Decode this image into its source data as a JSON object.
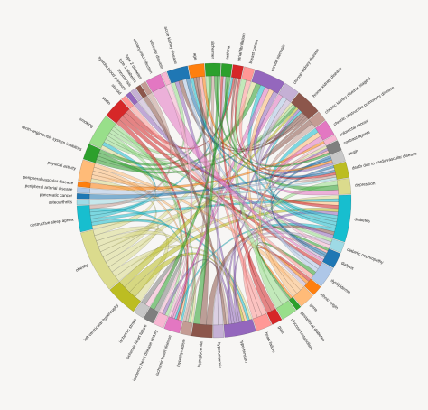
{
  "diagram": {
    "type": "chord",
    "nodes": [
      {
        "label": "acute kidney disease",
        "color": "#1f77b4"
      },
      {
        "label": "age",
        "color": "#ff7f0e"
      },
      {
        "label": "alzheimer",
        "color": "#2ca02c"
      },
      {
        "label": "asthma",
        "color": "#2ca02c"
      },
      {
        "label": "atrial fibrillation",
        "color": "#d62728"
      },
      {
        "label": "breast cancer",
        "color": "#ff9896"
      },
      {
        "label": "carotid stenosis",
        "color": "#9467bd"
      },
      {
        "label": "chronic kidney disease",
        "color": "#c5b0d5"
      },
      {
        "label": "chronic kidney disease",
        "color": "#8c564b"
      },
      {
        "label": "chronic kidney disease stage 5",
        "color": "#c49c94"
      },
      {
        "label": "chronic obstructive pulmonary disease",
        "color": "#e377c2"
      },
      {
        "label": "colorectal cancer",
        "color": "#f7b6d2"
      },
      {
        "label": "contrast agents",
        "color": "#7f7f7f"
      },
      {
        "label": "death",
        "color": "#c7c7c7"
      },
      {
        "label": "death due to cardiovascular disease",
        "color": "#bcbd22"
      },
      {
        "label": "depression",
        "color": "#dbdb8d"
      },
      {
        "label": "diabetes",
        "color": "#17becf"
      },
      {
        "label": "diabetic nephropathy",
        "color": "#9edae5"
      },
      {
        "label": "dialysis",
        "color": "#1f77b4"
      },
      {
        "label": "dyslipidemia",
        "color": "#aec7e8"
      },
      {
        "label": "ethnic origin",
        "color": "#ff7f0e"
      },
      {
        "label": "gene",
        "color": "#ffbb78"
      },
      {
        "label": "gestational diabetes",
        "color": "#2ca02c"
      },
      {
        "label": "glucose metabolism",
        "color": "#98df8a"
      },
      {
        "label": "gout",
        "color": "#d62728"
      },
      {
        "label": "heart failure",
        "color": "#ff9896"
      },
      {
        "label": "hypertension",
        "color": "#9467bd"
      },
      {
        "label": "hyperuricemia",
        "color": "#c5b0d5"
      },
      {
        "label": "hypoglycemia",
        "color": "#8c564b"
      },
      {
        "label": "hypothyroidism",
        "color": "#c49c94"
      },
      {
        "label": "ischemic heart disease",
        "color": "#e377c2"
      },
      {
        "label": "ischemic heart disease history",
        "color": "#f7b6d2"
      },
      {
        "label": "ischemic heart failure",
        "color": "#7f7f7f"
      },
      {
        "label": "ischemic stroke",
        "color": "#c7c7c7"
      },
      {
        "label": "left ventricular hypertrophy",
        "color": "#bcbd22"
      },
      {
        "label": "obesity",
        "color": "#dbdb8d"
      },
      {
        "label": "obstructive sleep apnea",
        "color": "#17becf"
      },
      {
        "label": "osteoarthritis",
        "color": "#9edae5"
      },
      {
        "label": "pancreatic cancer",
        "color": "#1f77b4"
      },
      {
        "label": "peripheral arterial disease",
        "color": "#aec7e8"
      },
      {
        "label": "peripheral vascular disease",
        "color": "#ff7f0e"
      },
      {
        "label": "physical activity",
        "color": "#ffbb78"
      },
      {
        "label": "renin-angiotensin system inhibitors",
        "color": "#2ca02c"
      },
      {
        "label": "smoking",
        "color": "#98df8a"
      },
      {
        "label": "statin",
        "color": "#d62728"
      },
      {
        "label": "steroid",
        "color": "#ff9896"
      },
      {
        "label": "systolic blood pressure",
        "color": "#9467bd"
      },
      {
        "label": "thrombosis",
        "color": "#c5b0d5"
      },
      {
        "label": "type 1 diabetes",
        "color": "#8c564b"
      },
      {
        "label": "type 2 diabetes",
        "color": "#c49c94"
      },
      {
        "label": "urinary tract infection",
        "color": "#e377c2"
      },
      {
        "label": "vascular disease",
        "color": "#f7b6d2"
      }
    ],
    "weights": [
      4,
      3,
      3,
      2,
      2,
      2,
      6,
      3,
      5,
      2,
      3,
      1,
      2,
      2,
      3,
      3,
      9,
      2,
      3,
      4,
      2,
      3,
      1,
      3,
      2,
      3,
      6,
      2,
      4,
      2,
      3,
      2,
      2,
      2,
      6,
      12,
      5,
      1,
      1,
      1,
      1,
      4,
      3,
      6,
      4,
      1,
      1,
      1,
      1,
      1,
      3,
      1
    ],
    "links": [
      [
        35,
        16
      ],
      [
        35,
        26
      ],
      [
        35,
        36
      ],
      [
        35,
        8
      ],
      [
        35,
        41
      ],
      [
        35,
        6
      ],
      [
        35,
        12
      ],
      [
        35,
        29
      ],
      [
        35,
        34
      ],
      [
        35,
        43
      ],
      [
        36,
        26
      ],
      [
        36,
        16
      ],
      [
        36,
        4
      ],
      [
        36,
        43
      ],
      [
        36,
        30
      ],
      [
        43,
        8
      ],
      [
        43,
        0
      ],
      [
        43,
        29
      ],
      [
        43,
        17
      ],
      [
        43,
        2
      ],
      [
        43,
        31
      ],
      [
        42,
        8
      ],
      [
        42,
        6
      ],
      [
        42,
        18
      ],
      [
        42,
        2
      ],
      [
        41,
        16
      ],
      [
        41,
        26
      ],
      [
        41,
        30
      ],
      [
        41,
        21
      ],
      [
        44,
        30
      ],
      [
        44,
        19
      ],
      [
        44,
        16
      ],
      [
        44,
        4
      ],
      [
        34,
        26
      ],
      [
        34,
        16
      ],
      [
        34,
        8
      ],
      [
        26,
        8
      ],
      [
        26,
        16
      ],
      [
        26,
        0
      ],
      [
        26,
        31
      ],
      [
        26,
        12
      ],
      [
        16,
        8
      ],
      [
        16,
        6
      ],
      [
        16,
        10
      ],
      [
        16,
        1
      ],
      [
        16,
        30
      ],
      [
        8,
        1
      ],
      [
        8,
        4
      ],
      [
        8,
        0
      ],
      [
        8,
        9
      ],
      [
        29,
        26
      ],
      [
        29,
        2
      ],
      [
        28,
        16
      ],
      [
        28,
        1
      ],
      [
        30,
        6
      ],
      [
        30,
        7
      ],
      [
        25,
        1
      ],
      [
        25,
        4
      ],
      [
        25,
        18
      ],
      [
        24,
        3
      ],
      [
        24,
        20
      ],
      [
        23,
        5
      ],
      [
        23,
        15
      ],
      [
        18,
        14
      ],
      [
        18,
        13
      ],
      [
        19,
        0
      ],
      [
        19,
        7
      ],
      [
        21,
        6
      ],
      [
        21,
        10
      ],
      [
        27,
        3
      ],
      [
        27,
        17
      ],
      [
        39,
        14
      ],
      [
        40,
        11
      ],
      [
        38,
        13
      ],
      [
        0,
        14
      ],
      [
        1,
        13
      ],
      [
        3,
        15
      ],
      [
        4,
        14
      ],
      [
        5,
        12
      ],
      [
        6,
        13
      ],
      [
        9,
        14
      ],
      [
        10,
        15
      ],
      [
        2,
        12
      ],
      [
        7,
        18
      ],
      [
        11,
        17
      ],
      [
        20,
        22
      ],
      [
        22,
        19
      ],
      [
        31,
        33
      ],
      [
        32,
        33
      ],
      [
        37,
        14
      ],
      [
        45,
        19
      ],
      [
        46,
        16
      ],
      [
        47,
        20
      ],
      [
        48,
        26
      ],
      [
        49,
        36
      ],
      [
        50,
        18
      ],
      [
        51,
        30
      ],
      [
        2,
        28
      ],
      [
        3,
        32
      ]
    ]
  }
}
